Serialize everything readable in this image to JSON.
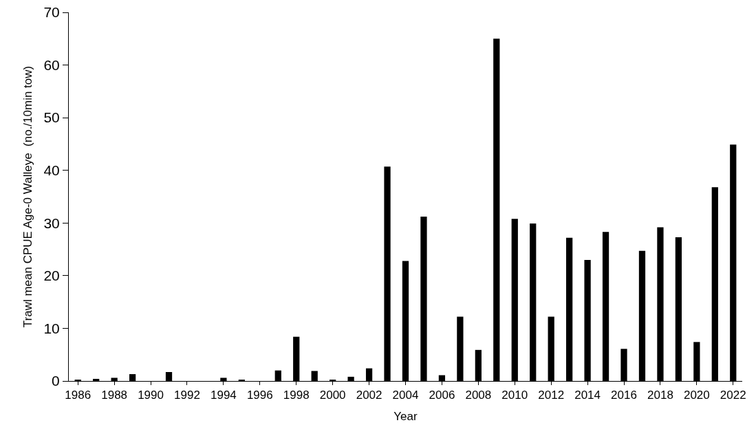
{
  "chart_data": {
    "type": "bar",
    "xlabel": "Year",
    "ylabel": "Trawl mean CPUE Age-0 Walleye  (no./10min tow)",
    "x": [
      1986,
      1987,
      1988,
      1989,
      1990,
      1991,
      1992,
      1993,
      1994,
      1995,
      1996,
      1997,
      1998,
      1999,
      2000,
      2001,
      2002,
      2003,
      2004,
      2005,
      2006,
      2007,
      2008,
      2009,
      2010,
      2011,
      2012,
      2013,
      2014,
      2015,
      2016,
      2017,
      2018,
      2019,
      2020,
      2021,
      2022
    ],
    "values": [
      0.2,
      0.4,
      0.6,
      1.3,
      0,
      1.7,
      0,
      0,
      0.6,
      0.2,
      0,
      2.0,
      8.4,
      1.9,
      0.2,
      0.8,
      2.4,
      40.7,
      22.8,
      31.2,
      1.1,
      12.2,
      5.9,
      65.0,
      30.8,
      29.9,
      12.2,
      27.2,
      23.0,
      28.3,
      6.1,
      24.7,
      29.2,
      27.3,
      7.4,
      36.8,
      44.9
    ],
    "color": "#000000",
    "xlim": [
      1985.5,
      2022.5
    ],
    "xticks": [
      1986,
      1988,
      1990,
      1992,
      1994,
      1996,
      1998,
      2000,
      2002,
      2004,
      2006,
      2008,
      2010,
      2012,
      2014,
      2016,
      2018,
      2020,
      2022
    ],
    "ylim": [
      0,
      70
    ],
    "yticks": [
      0,
      10,
      20,
      30,
      40,
      50,
      60,
      70
    ],
    "grid": false,
    "legend": false
  }
}
